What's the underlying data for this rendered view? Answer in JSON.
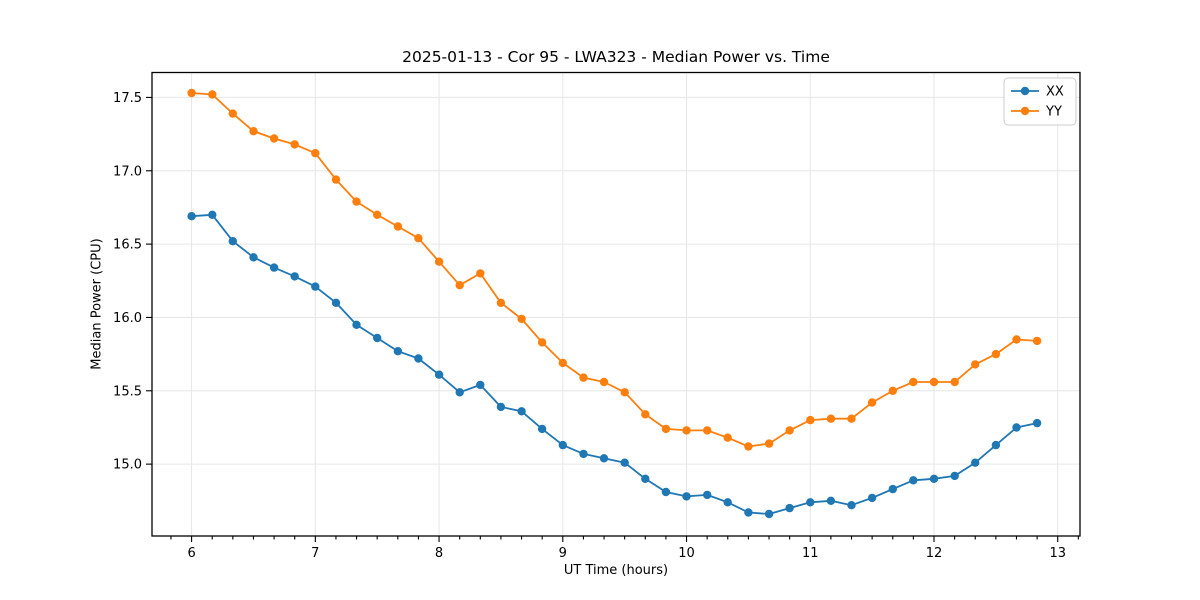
{
  "figure": {
    "background": "#ffffff",
    "spine_color": "#000000",
    "grid_color": "#e6e6e6",
    "text_color": "#000000"
  },
  "chart_data": {
    "type": "line",
    "title": "2025-01-13 - Cor 95 - LWA323 - Median Power vs. Time",
    "xlabel": "UT Time (hours)",
    "ylabel": "Median Power (CPU)",
    "xlim": [
      5.68,
      13.18
    ],
    "ylim": [
      14.51,
      17.67
    ],
    "x_major_ticks": [
      6,
      7,
      8,
      9,
      10,
      11,
      12,
      13
    ],
    "y_major_ticks": [
      15.0,
      15.5,
      16.0,
      16.5,
      17.0,
      17.5
    ],
    "x_minor_ticks_per_unit": 6,
    "grid": "major",
    "legend_position": "upper right",
    "marker": "circle",
    "x": [
      6.0,
      6.167,
      6.333,
      6.5,
      6.667,
      6.833,
      7.0,
      7.167,
      7.333,
      7.5,
      7.667,
      7.833,
      8.0,
      8.167,
      8.333,
      8.5,
      8.667,
      8.833,
      9.0,
      9.167,
      9.333,
      9.5,
      9.667,
      9.833,
      10.0,
      10.167,
      10.333,
      10.5,
      10.667,
      10.833,
      11.0,
      11.167,
      11.333,
      11.5,
      11.667,
      11.833,
      12.0,
      12.167,
      12.333,
      12.5,
      12.667,
      12.833
    ],
    "series": [
      {
        "name": "XX",
        "color": "#1f77b4",
        "values": [
          16.69,
          16.7,
          16.52,
          16.41,
          16.34,
          16.28,
          16.21,
          16.1,
          15.95,
          15.86,
          15.77,
          15.72,
          15.61,
          15.49,
          15.54,
          15.39,
          15.36,
          15.24,
          15.13,
          15.07,
          15.04,
          15.01,
          14.9,
          14.81,
          14.78,
          14.79,
          14.74,
          14.67,
          14.66,
          14.7,
          14.74,
          14.75,
          14.72,
          14.77,
          14.83,
          14.89,
          14.9,
          14.92,
          15.01,
          15.13,
          15.25,
          15.28
        ]
      },
      {
        "name": "YY",
        "color": "#ff7f0e",
        "values": [
          17.53,
          17.52,
          17.39,
          17.27,
          17.22,
          17.18,
          17.12,
          16.94,
          16.79,
          16.7,
          16.62,
          16.54,
          16.38,
          16.22,
          16.3,
          16.1,
          15.99,
          15.83,
          15.69,
          15.59,
          15.56,
          15.49,
          15.34,
          15.24,
          15.23,
          15.23,
          15.18,
          15.12,
          15.14,
          15.23,
          15.3,
          15.31,
          15.31,
          15.42,
          15.5,
          15.56,
          15.56,
          15.56,
          15.68,
          15.75,
          15.85,
          15.84
        ]
      }
    ]
  }
}
